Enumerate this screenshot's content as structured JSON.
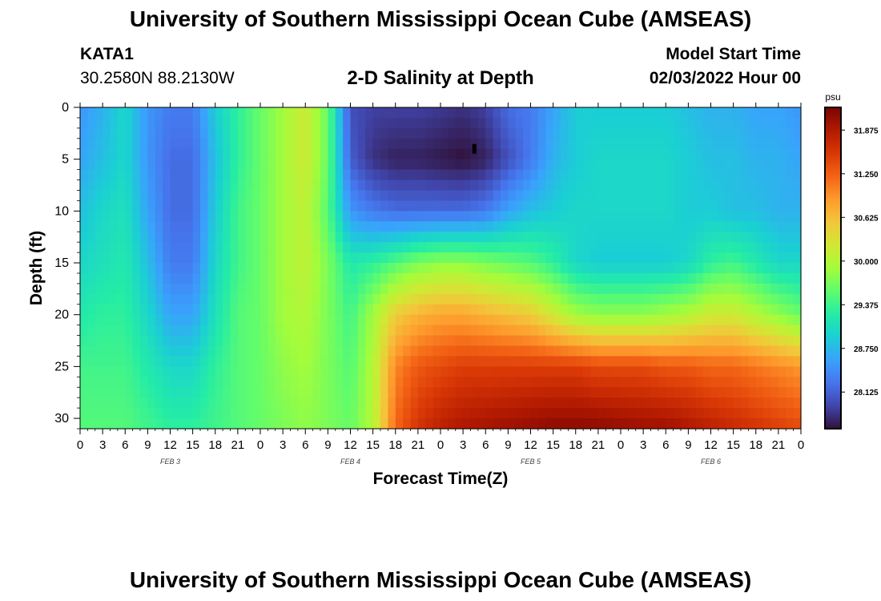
{
  "header": {
    "title": "University of Southern Mississippi Ocean Cube (AMSEAS)",
    "station_id": "KATA1",
    "station_coords": "30.2580N  88.2130W",
    "plot_title": "2-D Salinity at Depth",
    "model_start_label": "Model Start Time",
    "model_start_value": "02/03/2022 Hour 00"
  },
  "footer": {
    "title": "University of Southern Mississippi Ocean Cube (AMSEAS)"
  },
  "chart_data": {
    "type": "heatmap",
    "title": "2-D Salinity at Depth",
    "xlabel": "Forecast Time(Z)",
    "ylabel": "Depth (ft)",
    "x_ticks": [
      "0",
      "3",
      "6",
      "9",
      "12",
      "15",
      "18",
      "21",
      "0",
      "3",
      "6",
      "9",
      "12",
      "15",
      "18",
      "21",
      "0",
      "3",
      "6",
      "9",
      "12",
      "15",
      "18",
      "21",
      "0",
      "3",
      "6",
      "9",
      "12",
      "15",
      "18",
      "21",
      "0"
    ],
    "date_labels": [
      {
        "label": "FEB 3",
        "hour": 12
      },
      {
        "label": "FEB 4",
        "hour": 36
      },
      {
        "label": "FEB 5",
        "hour": 60
      },
      {
        "label": "FEB 6",
        "hour": 84
      }
    ],
    "xlim": [
      0,
      96
    ],
    "y_ticks": [
      0,
      5,
      10,
      15,
      20,
      25,
      30
    ],
    "ylim": [
      0,
      31
    ],
    "colorbar": {
      "unit": "psu",
      "ticks": [
        "31.875",
        "31.250",
        "30.625",
        "30.000",
        "29.375",
        "28.750",
        "28.125"
      ],
      "range": [
        27.6,
        32.2
      ],
      "colors": [
        "#30123b",
        "#4145ab",
        "#4675ed",
        "#39a2fc",
        "#1bcfd4",
        "#24eca6",
        "#61fc6c",
        "#a4fc3b",
        "#d1e834",
        "#f3c63a",
        "#fe9b2d",
        "#f36315",
        "#d93806",
        "#b11901",
        "#7a0403"
      ]
    },
    "salinity_keyframes": {
      "description": "Approximate salinity (psu) versus forecast hour at key depths (ft)",
      "hours": [
        0,
        3,
        6,
        9,
        12,
        15,
        18,
        21,
        24,
        27,
        30,
        33,
        36,
        39,
        42,
        45,
        48,
        51,
        54,
        57,
        60,
        63,
        66,
        69,
        72,
        75,
        78,
        81,
        84,
        87,
        90,
        93,
        96
      ],
      "depths": [
        0,
        5,
        10,
        15,
        20,
        25,
        31
      ],
      "values": [
        [
          28.5,
          28.7,
          29.0,
          28.5,
          28.3,
          28.3,
          28.9,
          29.3,
          29.6,
          29.9,
          30.2,
          29.6,
          28.0,
          27.9,
          27.9,
          27.9,
          27.85,
          27.8,
          27.9,
          28.2,
          28.3,
          28.6,
          28.9,
          28.9,
          28.9,
          28.9,
          28.9,
          28.8,
          28.7,
          28.7,
          28.6,
          28.6,
          28.5
        ],
        [
          28.6,
          28.8,
          29.0,
          28.5,
          28.2,
          28.2,
          28.8,
          29.3,
          29.6,
          29.9,
          30.2,
          29.6,
          28.1,
          27.8,
          27.7,
          27.7,
          27.65,
          27.6,
          27.7,
          28.0,
          28.3,
          28.7,
          28.9,
          29.0,
          29.0,
          29.0,
          29.0,
          28.9,
          28.8,
          28.8,
          28.7,
          28.7,
          28.6
        ],
        [
          28.8,
          29.0,
          29.1,
          28.6,
          28.2,
          28.2,
          28.9,
          29.4,
          29.6,
          29.9,
          30.1,
          29.5,
          28.5,
          28.3,
          28.2,
          28.2,
          28.2,
          28.2,
          28.3,
          28.6,
          28.8,
          28.9,
          29.0,
          29.0,
          29.0,
          29.0,
          29.0,
          28.9,
          28.9,
          28.8,
          28.8,
          28.7,
          28.7
        ],
        [
          29.0,
          29.1,
          29.2,
          28.8,
          28.3,
          28.3,
          29.0,
          29.4,
          29.6,
          29.9,
          30.1,
          29.7,
          29.2,
          29.3,
          29.5,
          29.7,
          29.8,
          29.8,
          29.7,
          29.6,
          29.5,
          29.3,
          29.0,
          28.9,
          28.9,
          28.9,
          28.9,
          29.0,
          29.3,
          29.4,
          29.2,
          29.0,
          29.0
        ],
        [
          29.2,
          29.3,
          29.3,
          29.0,
          28.6,
          28.6,
          29.1,
          29.5,
          29.6,
          29.9,
          30.0,
          29.7,
          29.4,
          29.9,
          30.5,
          30.7,
          30.8,
          30.8,
          30.7,
          30.6,
          30.5,
          30.2,
          29.9,
          29.8,
          29.8,
          29.8,
          29.9,
          30.0,
          30.2,
          30.2,
          30.0,
          29.8,
          29.6
        ],
        [
          29.4,
          29.4,
          29.4,
          29.2,
          29.0,
          29.0,
          29.3,
          29.5,
          29.6,
          29.8,
          29.9,
          29.7,
          29.5,
          30.0,
          31.0,
          31.3,
          31.4,
          31.5,
          31.5,
          31.5,
          31.5,
          31.5,
          31.5,
          31.4,
          31.4,
          31.4,
          31.3,
          31.3,
          31.2,
          31.2,
          31.1,
          31.0,
          30.9
        ],
        [
          29.5,
          29.5,
          29.5,
          29.4,
          29.3,
          29.3,
          29.4,
          29.5,
          29.6,
          29.7,
          29.8,
          29.7,
          29.6,
          30.0,
          31.2,
          31.6,
          31.8,
          31.9,
          31.95,
          32.0,
          32.05,
          32.1,
          32.1,
          32.1,
          32.05,
          32.0,
          32.0,
          31.9,
          31.8,
          31.7,
          31.6,
          31.5,
          31.4
        ]
      ]
    },
    "marker": {
      "hour": 52.5,
      "depth": 4,
      "note": "sensor depth marker"
    }
  }
}
